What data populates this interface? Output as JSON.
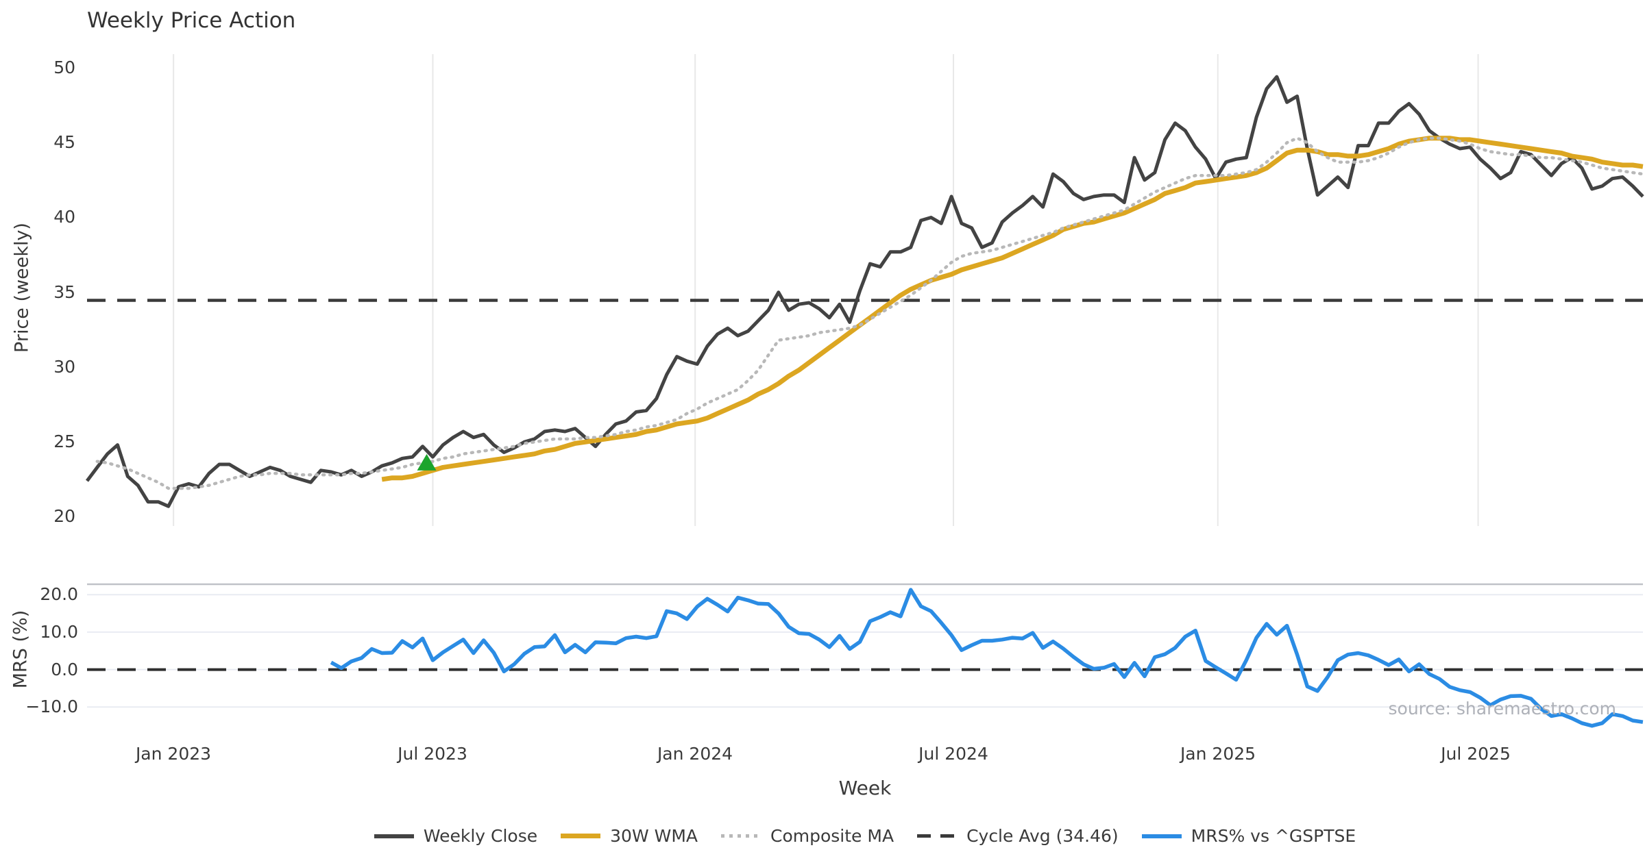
{
  "title": "Weekly Price Action",
  "source_text": "source: sharemaestro.com",
  "legend": {
    "items": [
      {
        "label": "Weekly Close",
        "swatch": "solid-dark"
      },
      {
        "label": "30W WMA",
        "swatch": "solid-gold"
      },
      {
        "label": "Composite MA",
        "swatch": "dotted-gray"
      },
      {
        "label": "Cycle Avg (34.46)",
        "swatch": "dashed-dark"
      },
      {
        "label": "MRS% vs ^GSPTSE",
        "swatch": "solid-blue"
      }
    ]
  },
  "chart_data": {
    "type": "line",
    "title": "Weekly Price Action",
    "xlabel": "Week",
    "grid": "vertical gridlines on price panel, horizontal gridlines on MRS panel",
    "legend_position": "bottom center",
    "xticks": [
      {
        "label": "Jan 2023",
        "week": 8.5
      },
      {
        "label": "Jul 2023",
        "week": 34.0
      },
      {
        "label": "Jan 2024",
        "week": 59.8
      },
      {
        "label": "Jul 2024",
        "week": 85.2
      },
      {
        "label": "Jan 2025",
        "week": 111.2
      },
      {
        "label": "Jul 2025",
        "week": 136.8
      }
    ],
    "panels": [
      {
        "ylabel": "Price (weekly)",
        "ytick_labels": [
          "50",
          "45",
          "40",
          "35",
          "30",
          "25",
          "20"
        ],
        "ytick_values": [
          50,
          45,
          40,
          35,
          30,
          25,
          20
        ],
        "ylim": [
          19.3,
          50.9
        ],
        "cycle_avg": 34.46
      },
      {
        "ylabel": "MRS (%)",
        "ytick_labels": [
          "20.0",
          "10.0",
          "0.0",
          "−10.0"
        ],
        "ytick_values": [
          20,
          10,
          0,
          -10
        ],
        "gridline_values": [
          20,
          10,
          0,
          -10
        ],
        "ylim": [
          -18.5,
          22.8
        ],
        "zero_line": 0
      }
    ],
    "marker": {
      "name": "buy-signal-triangle",
      "shape": "triangle-up",
      "color": "#1ca42c",
      "week": 33.4,
      "value": 23.55
    },
    "style": {
      "grid_color_top": "#e8e8e8",
      "grid_color_bottom": "#e9ebf2",
      "spine_color": "#c0c2c8",
      "dash_color": "#3a3a3a",
      "text_color": "#3a3a3a"
    },
    "series": [
      {
        "name": "Weekly Close",
        "panel": 0,
        "color": "#434343",
        "width": 5,
        "start_week": 0,
        "values": [
          22.4,
          23.3,
          24.2,
          24.8,
          22.7,
          22.1,
          21.0,
          21.0,
          20.7,
          22.0,
          22.2,
          22.0,
          22.9,
          23.5,
          23.5,
          23.1,
          22.7,
          23.0,
          23.3,
          23.1,
          22.7,
          22.5,
          22.3,
          23.1,
          23.0,
          22.8,
          23.1,
          22.7,
          23.0,
          23.4,
          23.6,
          23.9,
          24.0,
          24.7,
          24.0,
          24.8,
          25.3,
          25.7,
          25.3,
          25.5,
          24.8,
          24.3,
          24.6,
          25.0,
          25.2,
          25.7,
          25.8,
          25.7,
          25.9,
          25.3,
          24.7,
          25.5,
          26.2,
          26.4,
          27.0,
          27.1,
          27.9,
          29.5,
          30.7,
          30.4,
          30.2,
          31.4,
          32.2,
          32.6,
          32.1,
          32.4,
          33.1,
          33.8,
          35.0,
          33.8,
          34.2,
          34.3,
          33.9,
          33.3,
          34.2,
          33.0,
          35.1,
          36.9,
          36.7,
          37.7,
          37.7,
          38.0,
          39.8,
          40.0,
          39.6,
          41.4,
          39.6,
          39.3,
          38.0,
          38.3,
          39.7,
          40.3,
          40.8,
          41.4,
          40.7,
          42.9,
          42.4,
          41.6,
          41.2,
          41.4,
          41.5,
          41.5,
          41.0,
          44.0,
          42.5,
          43.0,
          45.2,
          46.3,
          45.8,
          44.7,
          43.9,
          42.6,
          43.7,
          43.9,
          44.0,
          46.7,
          48.6,
          49.4,
          47.7,
          48.1,
          44.6,
          41.5,
          42.1,
          42.7,
          42.0,
          44.8,
          44.8,
          46.3,
          46.3,
          47.1,
          47.6,
          46.9,
          45.8,
          45.3,
          44.9,
          44.6,
          44.7,
          43.9,
          43.3,
          42.6,
          43.0,
          44.4,
          44.2,
          43.5,
          42.8,
          43.6,
          44.0,
          43.3,
          41.9,
          42.1,
          42.6,
          42.7,
          42.1,
          41.4
        ]
      },
      {
        "name": "30W WMA",
        "panel": 0,
        "color": "#dca621",
        "width": 7,
        "start_week": 29,
        "values": [
          22.5,
          22.6,
          22.6,
          22.7,
          22.9,
          23.1,
          23.3,
          23.4,
          23.5,
          23.6,
          23.7,
          23.8,
          23.9,
          24.0,
          24.1,
          24.2,
          24.4,
          24.5,
          24.7,
          24.9,
          25.0,
          25.1,
          25.2,
          25.3,
          25.4,
          25.5,
          25.7,
          25.8,
          26.0,
          26.2,
          26.3,
          26.4,
          26.6,
          26.9,
          27.2,
          27.5,
          27.8,
          28.2,
          28.5,
          28.9,
          29.4,
          29.8,
          30.3,
          30.8,
          31.3,
          31.8,
          32.3,
          32.8,
          33.3,
          33.8,
          34.3,
          34.8,
          35.2,
          35.5,
          35.8,
          36.0,
          36.2,
          36.5,
          36.7,
          36.9,
          37.1,
          37.3,
          37.6,
          37.9,
          38.2,
          38.5,
          38.8,
          39.2,
          39.4,
          39.6,
          39.7,
          39.9,
          40.1,
          40.3,
          40.6,
          40.9,
          41.2,
          41.6,
          41.8,
          42.0,
          42.3,
          42.4,
          42.5,
          42.6,
          42.7,
          42.8,
          43.0,
          43.3,
          43.8,
          44.3,
          44.5,
          44.5,
          44.4,
          44.2,
          44.2,
          44.1,
          44.1,
          44.2,
          44.4,
          44.6,
          44.9,
          45.1,
          45.2,
          45.3,
          45.3,
          45.3,
          45.2,
          45.2,
          45.1,
          45.0,
          44.9,
          44.8,
          44.7,
          44.6,
          44.5,
          44.4,
          44.3,
          44.1,
          44.0,
          43.9,
          43.7,
          43.6,
          43.5,
          43.5,
          43.4
        ]
      },
      {
        "name": "Composite MA",
        "panel": 0,
        "color": "#b8b8b8",
        "width": 4.5,
        "dash": "2 8",
        "linecap": "round",
        "start_week": 1,
        "values": [
          23.7,
          23.6,
          23.4,
          23.2,
          22.9,
          22.6,
          22.3,
          21.9,
          21.9,
          21.9,
          22.0,
          22.1,
          22.3,
          22.5,
          22.7,
          22.8,
          22.8,
          22.9,
          22.9,
          22.9,
          22.8,
          22.8,
          22.8,
          22.8,
          22.8,
          22.9,
          22.9,
          23.0,
          23.1,
          23.2,
          23.3,
          23.5,
          23.6,
          23.7,
          23.9,
          24.0,
          24.2,
          24.3,
          24.4,
          24.5,
          24.6,
          24.7,
          24.9,
          25.0,
          25.1,
          25.2,
          25.2,
          25.2,
          25.3,
          25.3,
          25.4,
          25.5,
          25.7,
          25.8,
          26.0,
          26.1,
          26.3,
          26.5,
          26.9,
          27.2,
          27.6,
          27.9,
          28.2,
          28.5,
          29.1,
          29.8,
          30.8,
          31.8,
          31.9,
          32.0,
          32.1,
          32.3,
          32.4,
          32.5,
          32.6,
          32.8,
          33.2,
          33.6,
          34.0,
          34.4,
          34.8,
          35.3,
          35.8,
          36.4,
          37.0,
          37.4,
          37.6,
          37.7,
          37.8,
          38.0,
          38.2,
          38.4,
          38.6,
          38.8,
          39.0,
          39.3,
          39.5,
          39.7,
          39.9,
          40.1,
          40.3,
          40.5,
          40.9,
          41.3,
          41.7,
          42.0,
          42.3,
          42.6,
          42.8,
          42.8,
          42.8,
          42.8,
          42.9,
          43.0,
          43.2,
          43.7,
          44.3,
          45.0,
          45.3,
          45.0,
          44.4,
          44.0,
          43.7,
          43.7,
          43.7,
          43.8,
          44.0,
          44.3,
          44.7,
          45.0,
          45.2,
          45.3,
          45.3,
          45.2,
          45.1,
          44.9,
          44.6,
          44.4,
          44.3,
          44.2,
          44.2,
          44.1,
          44.0,
          44.0,
          43.9,
          43.8,
          43.7,
          43.5,
          43.3,
          43.2,
          43.1,
          43.0,
          42.9
        ]
      },
      {
        "name": "MRS% vs ^GSPTSE",
        "panel": 1,
        "color": "#2b8ce4",
        "width": 5.5,
        "start_week": 24,
        "values": [
          1.9,
          0.4,
          2.2,
          3.1,
          5.5,
          4.4,
          4.5,
          7.6,
          5.9,
          8.3,
          2.5,
          4.6,
          6.3,
          8.0,
          4.4,
          7.8,
          4.5,
          -0.5,
          1.4,
          4.2,
          6.0,
          6.2,
          9.2,
          4.6,
          6.6,
          4.6,
          7.3,
          7.2,
          7.0,
          8.4,
          8.8,
          8.4,
          8.9,
          15.6,
          15.0,
          13.5,
          16.8,
          18.9,
          17.3,
          15.5,
          19.2,
          18.5,
          17.6,
          17.5,
          15.0,
          11.4,
          9.7,
          9.5,
          8.0,
          6.0,
          9.0,
          5.5,
          7.4,
          12.9,
          14.0,
          15.3,
          14.2,
          21.3,
          16.9,
          15.6,
          12.5,
          9.2,
          5.2,
          6.5,
          7.7,
          7.7,
          8.0,
          8.5,
          8.3,
          9.8,
          5.8,
          7.5,
          5.6,
          3.4,
          1.4,
          0.2,
          0.5,
          1.5,
          -2.0,
          1.8,
          -1.8,
          3.3,
          4.1,
          5.8,
          8.8,
          10.4,
          2.3,
          0.6,
          -1.0,
          -2.7,
          2.5,
          8.5,
          12.2,
          9.3,
          11.7,
          4.0,
          -4.5,
          -5.7,
          -2.0,
          2.5,
          4.0,
          4.4,
          3.8,
          2.6,
          1.2,
          2.7,
          -0.5,
          1.4,
          -1.2,
          -2.5,
          -4.6,
          -5.5,
          -6.0,
          -7.5,
          -9.5,
          -8.0,
          -7.1,
          -7.0,
          -7.8,
          -10.5,
          -12.4,
          -11.9,
          -13.0,
          -14.3,
          -15.0,
          -14.3,
          -11.9,
          -12.4,
          -13.6,
          -14.0
        ]
      }
    ]
  }
}
